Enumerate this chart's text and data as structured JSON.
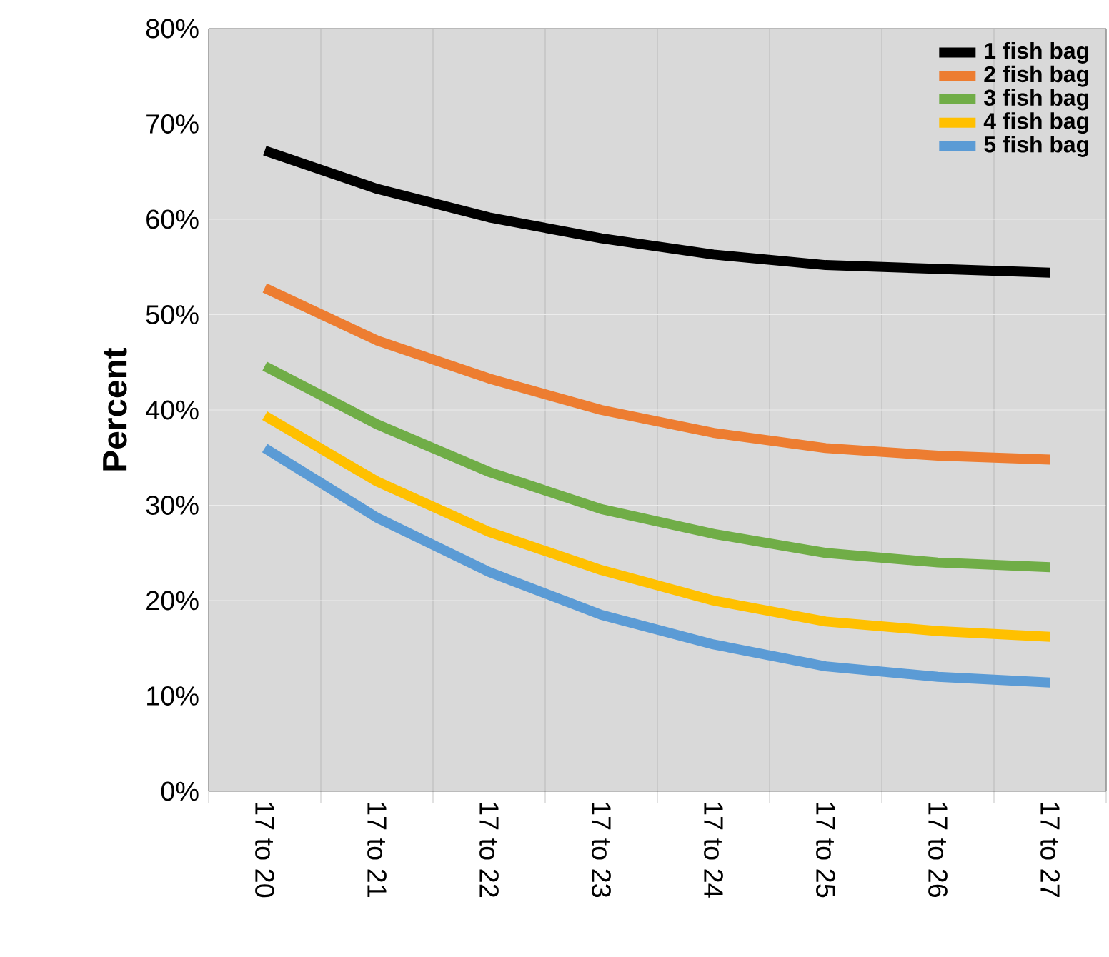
{
  "chart_data": {
    "type": "line",
    "ylabel": "Percent",
    "categories": [
      "17 to 20",
      "17 to 21",
      "17 to 22",
      "17 to 23",
      "17 to 24",
      "17 to 25",
      "17 to 26",
      "17 to 27"
    ],
    "series": [
      {
        "name": "1 fish bag",
        "color": "#000000",
        "values": [
          67.2,
          63.2,
          60.2,
          58,
          56.3,
          55.2,
          54.8,
          54.4
        ]
      },
      {
        "name": "2 fish bag",
        "color": "#ed7d31",
        "values": [
          52.8,
          47.3,
          43.3,
          40,
          37.6,
          36,
          35.2,
          34.8
        ]
      },
      {
        "name": "3 fish bag",
        "color": "#70ad47",
        "values": [
          44.6,
          38.5,
          33.5,
          29.6,
          27,
          25,
          24,
          23.5
        ]
      },
      {
        "name": "4 fish bag",
        "color": "#ffc000",
        "values": [
          39.4,
          32.5,
          27.2,
          23.2,
          20,
          17.8,
          16.8,
          16.2
        ]
      },
      {
        "name": "5 fish bag",
        "color": "#5b9bd5",
        "values": [
          36,
          28.7,
          23,
          18.5,
          15.4,
          13.1,
          12,
          11.4
        ]
      }
    ],
    "ylim": [
      0,
      80
    ],
    "yticks": [
      {
        "value": 0,
        "label": "0%"
      },
      {
        "value": 10,
        "label": "10%"
      },
      {
        "value": 20,
        "label": "20%"
      },
      {
        "value": 30,
        "label": "30%"
      },
      {
        "value": 40,
        "label": "40%"
      },
      {
        "value": 50,
        "label": "50%"
      },
      {
        "value": 60,
        "label": "60%"
      },
      {
        "value": 70,
        "label": "70%"
      },
      {
        "value": 80,
        "label": "80%"
      }
    ],
    "grid": true,
    "legend": "top right",
    "line_style": "solid"
  }
}
